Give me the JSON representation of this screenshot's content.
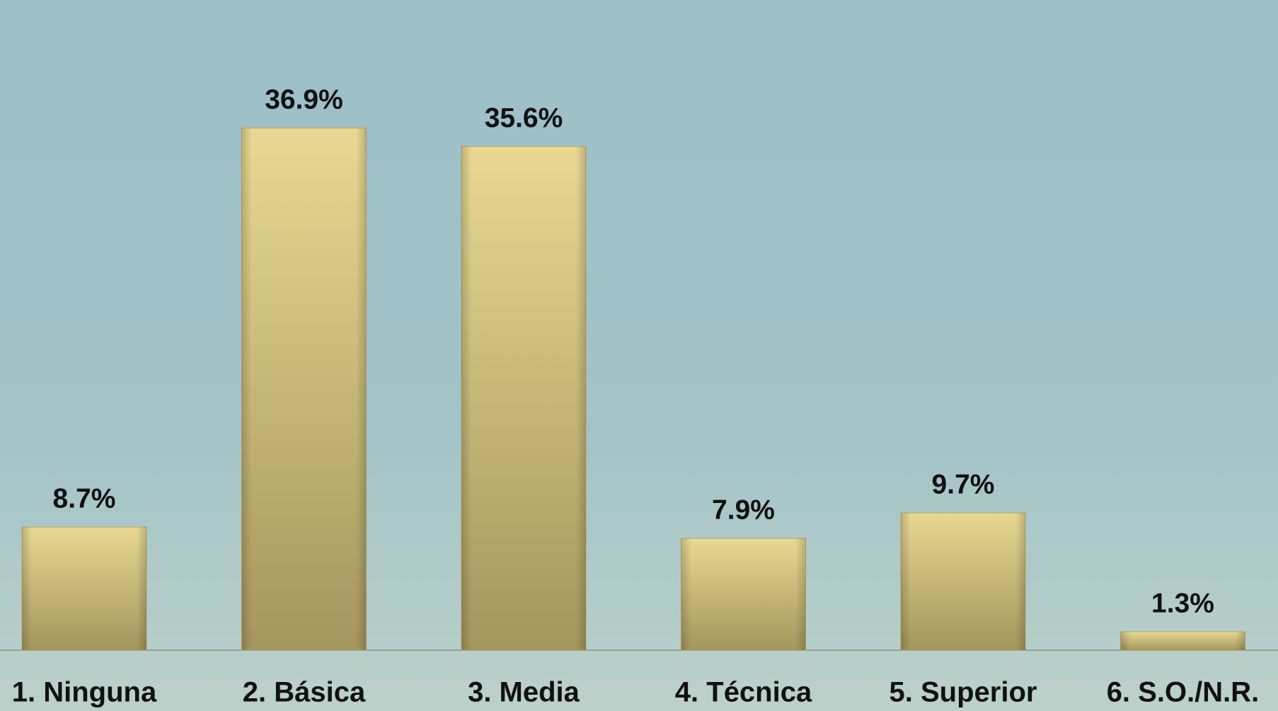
{
  "chart_data": {
    "type": "bar",
    "categories": [
      "1. Ninguna",
      "2. Básica",
      "3. Media",
      "4. Técnica",
      "5. Superior",
      "6. S.O./N.R."
    ],
    "values": [
      8.7,
      36.9,
      35.6,
      7.9,
      9.7,
      1.3
    ],
    "value_labels": [
      "8.7%",
      "36.9%",
      "35.6%",
      "7.9%",
      "9.7%",
      "1.3%"
    ],
    "color": "#d9c77e"
  }
}
